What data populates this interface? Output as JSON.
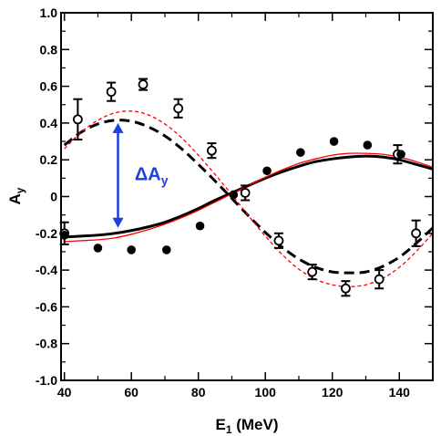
{
  "chart_data": {
    "type": "scatter",
    "title": "",
    "xlabel": {
      "main": "E",
      "sub": "1",
      "tail": " (MeV)"
    },
    "ylabel": {
      "main": "A",
      "sub": "y"
    },
    "xlim": [
      39,
      150
    ],
    "ylim": [
      -1.0,
      1.0
    ],
    "xticks": [
      40,
      60,
      80,
      100,
      120,
      140
    ],
    "yticks": [
      -1.0,
      -0.8,
      -0.6,
      -0.4,
      -0.2,
      0,
      0.2,
      0.4,
      0.6,
      0.8,
      1.0
    ],
    "ytick_labels": [
      "-1.0",
      "-0.8",
      "-0.6",
      "-0.4",
      "-0.2",
      "0",
      "0.2",
      "0.4",
      "0.6",
      "0.8",
      "1.0"
    ],
    "grid": false,
    "series": [
      {
        "kind": "points",
        "marker": "open-circle",
        "color": "#000000",
        "points": [
          {
            "x": 40.0,
            "y": -0.2,
            "err": 0.06
          },
          {
            "x": 44.0,
            "y": 0.42,
            "err": 0.11
          },
          {
            "x": 54.0,
            "y": 0.57,
            "err": 0.05
          },
          {
            "x": 63.5,
            "y": 0.61,
            "err": 0.03
          },
          {
            "x": 74.0,
            "y": 0.48,
            "err": 0.05
          },
          {
            "x": 84.0,
            "y": 0.25,
            "err": 0.04
          },
          {
            "x": 94.0,
            "y": 0.02,
            "err": 0.04
          },
          {
            "x": 104.0,
            "y": -0.24,
            "err": 0.04
          },
          {
            "x": 114.0,
            "y": -0.41,
            "err": 0.04
          },
          {
            "x": 124.0,
            "y": -0.5,
            "err": 0.04
          },
          {
            "x": 134.0,
            "y": -0.45,
            "err": 0.05
          },
          {
            "x": 139.5,
            "y": 0.23,
            "err": 0.05
          },
          {
            "x": 145.0,
            "y": -0.2,
            "err": 0.07
          }
        ]
      },
      {
        "kind": "points",
        "marker": "filled-circle",
        "color": "#000000",
        "points": [
          {
            "x": 40.0,
            "y": -0.21
          },
          {
            "x": 50.0,
            "y": -0.28
          },
          {
            "x": 60.0,
            "y": -0.29
          },
          {
            "x": 70.5,
            "y": -0.29
          },
          {
            "x": 80.5,
            "y": -0.16
          },
          {
            "x": 90.5,
            "y": 0.01
          },
          {
            "x": 100.5,
            "y": 0.14
          },
          {
            "x": 110.5,
            "y": 0.24
          },
          {
            "x": 120.5,
            "y": 0.3
          },
          {
            "x": 130.5,
            "y": 0.28
          },
          {
            "x": 140.5,
            "y": 0.23
          }
        ]
      },
      {
        "kind": "curve",
        "style": "solid",
        "color": "#000000",
        "x": [
          40,
          45,
          50,
          55,
          60,
          65,
          70,
          75,
          80,
          85,
          90,
          95,
          100,
          105,
          110,
          115,
          120,
          125,
          130,
          135,
          140,
          145,
          150
        ],
        "y": [
          -0.22,
          -0.215,
          -0.21,
          -0.2,
          -0.185,
          -0.165,
          -0.14,
          -0.105,
          -0.065,
          -0.02,
          0.02,
          0.06,
          0.1,
          0.135,
          0.165,
          0.19,
          0.205,
          0.215,
          0.22,
          0.215,
          0.2,
          0.175,
          0.15
        ]
      },
      {
        "kind": "curve",
        "style": "solid",
        "color": "#ff0000",
        "x": [
          40,
          45,
          50,
          55,
          60,
          65,
          70,
          75,
          80,
          85,
          90,
          95,
          100,
          105,
          110,
          115,
          120,
          125,
          130,
          135,
          140,
          145,
          150
        ],
        "y": [
          -0.245,
          -0.24,
          -0.235,
          -0.225,
          -0.205,
          -0.18,
          -0.15,
          -0.115,
          -0.075,
          -0.03,
          0.015,
          0.06,
          0.105,
          0.145,
          0.18,
          0.205,
          0.225,
          0.235,
          0.235,
          0.23,
          0.215,
          0.19,
          0.16
        ]
      },
      {
        "kind": "curve",
        "style": "dashed",
        "color": "#000000",
        "x": [
          40,
          45,
          50,
          55,
          60,
          65,
          70,
          75,
          80,
          85,
          90,
          95,
          100,
          105,
          110,
          115,
          120,
          125,
          130,
          135,
          140,
          145,
          150
        ],
        "y": [
          0.28,
          0.35,
          0.395,
          0.415,
          0.41,
          0.38,
          0.33,
          0.26,
          0.175,
          0.085,
          -0.01,
          -0.105,
          -0.195,
          -0.275,
          -0.34,
          -0.385,
          -0.41,
          -0.415,
          -0.41,
          -0.38,
          -0.33,
          -0.255,
          -0.17
        ]
      },
      {
        "kind": "curve",
        "style": "dashed",
        "color": "#ff0000",
        "x": [
          40,
          45,
          50,
          55,
          60,
          65,
          70,
          75,
          80,
          85,
          90,
          95,
          100,
          105,
          110,
          115,
          120,
          125,
          130,
          135,
          140,
          145,
          150
        ],
        "y": [
          0.26,
          0.35,
          0.415,
          0.455,
          0.465,
          0.445,
          0.395,
          0.32,
          0.225,
          0.12,
          0.01,
          -0.105,
          -0.215,
          -0.315,
          -0.395,
          -0.45,
          -0.48,
          -0.49,
          -0.48,
          -0.445,
          -0.385,
          -0.3,
          -0.2
        ]
      }
    ],
    "annotation": {
      "label_main": "ΔA",
      "label_sub": "y",
      "color": "#1f3fe0",
      "arrow_x": 56,
      "arrow_y_from": 0.4,
      "arrow_y_to": -0.17,
      "label_x": 61,
      "label_y": 0.09
    }
  }
}
